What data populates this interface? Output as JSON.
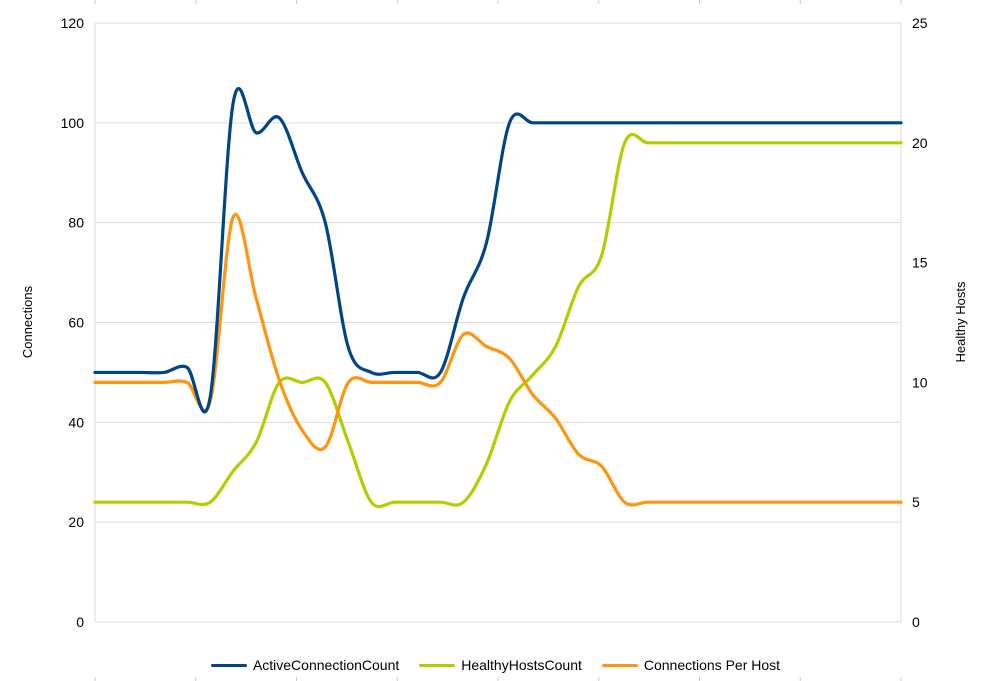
{
  "chart_data": {
    "type": "line",
    "title": "",
    "xlabel": "",
    "ylabel": "Connections",
    "y2label": "Healthy Hosts",
    "ylim": [
      0,
      120
    ],
    "y2lim": [
      0,
      25
    ],
    "yticks": [
      "0",
      "20",
      "40",
      "60",
      "80",
      "100",
      "120"
    ],
    "y2ticks": [
      "0",
      "5",
      "10",
      "15",
      "20",
      "25"
    ],
    "grid": true,
    "legend_position": "bottom",
    "x": [
      0,
      1,
      2,
      3,
      4,
      5,
      6,
      7,
      8,
      9,
      10,
      11,
      12,
      13,
      14,
      15,
      16,
      17,
      18,
      19,
      20,
      21,
      22,
      23,
      24,
      25,
      26,
      27,
      28,
      29,
      30,
      31,
      32,
      33,
      34,
      35
    ],
    "series": [
      {
        "name": "ActiveConnectionCount",
        "axis": "left",
        "color": "#004586",
        "values": [
          50,
          50,
          50,
          50,
          51,
          45,
          104,
          98,
          101,
          90,
          80,
          55,
          50,
          50,
          50,
          50,
          65,
          76,
          100,
          100,
          100,
          100,
          100,
          100,
          100,
          100,
          100,
          100,
          100,
          100,
          100,
          100,
          100,
          100,
          100,
          100
        ]
      },
      {
        "name": "HealthyHostsCount",
        "axis": "right",
        "color": "#aecf00",
        "values": [
          5,
          5,
          5,
          5,
          5,
          5,
          6.3,
          7.5,
          10,
          10,
          10,
          7.5,
          5,
          5,
          5,
          5,
          5,
          6.6,
          9.2,
          10.3,
          11.5,
          14,
          15.3,
          20,
          20,
          20,
          20,
          20,
          20,
          20,
          20,
          20,
          20,
          20,
          20,
          20
        ]
      },
      {
        "name": "Connections Per Host",
        "axis": "right",
        "color": "#ff950e",
        "values": [
          10,
          10,
          10,
          10,
          10,
          9.2,
          16.9,
          13.5,
          10.1,
          8,
          7.3,
          10,
          10,
          10,
          10,
          10,
          12,
          11.5,
          11,
          9.5,
          8.5,
          7,
          6.5,
          5,
          5,
          5,
          5,
          5,
          5,
          5,
          5,
          5,
          5,
          5,
          5,
          5
        ]
      }
    ]
  }
}
